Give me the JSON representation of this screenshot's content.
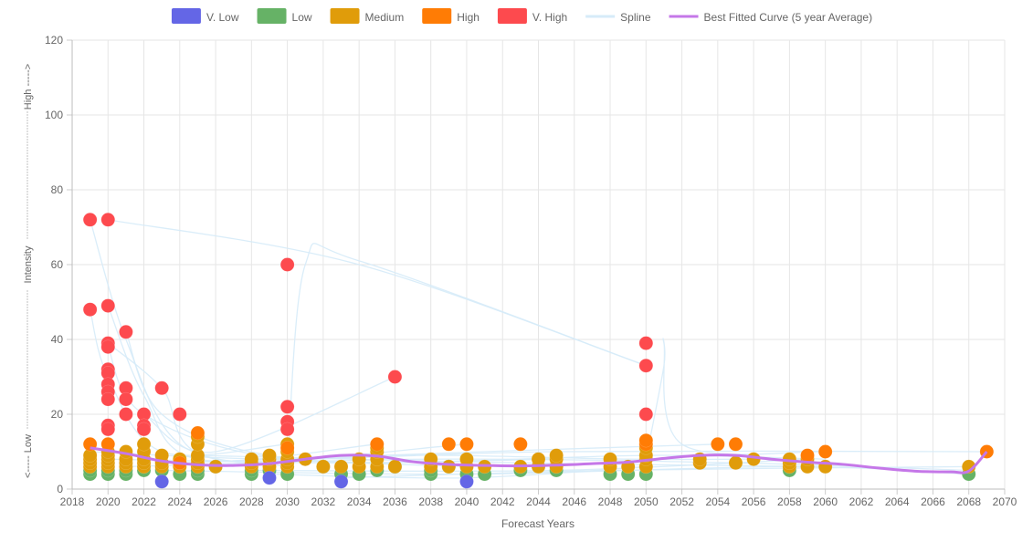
{
  "chart_data": {
    "type": "scatter",
    "title": "",
    "xlabel": "Forecast Years",
    "ylabel": "<----- Low -------------- Intensity --------------- High ----->",
    "ylabel_parts": {
      "low": "<----- Low",
      "mid": "Intensity",
      "high": "High ----->"
    },
    "xlim": [
      2018,
      2070
    ],
    "ylim": [
      0,
      120
    ],
    "x_ticks": [
      "2018",
      "2020",
      "2022",
      "2024",
      "2026",
      "2028",
      "2030",
      "2032",
      "2034",
      "2036",
      "2038",
      "2040",
      "2042",
      "2044",
      "2046",
      "2048",
      "2050",
      "2052",
      "2054",
      "2056",
      "2058",
      "2060",
      "2062",
      "2064",
      "2066",
      "2068",
      "2070"
    ],
    "y_ticks": [
      "0",
      "20",
      "40",
      "60",
      "80",
      "100",
      "120"
    ],
    "grid": true,
    "legend_position": "top-center",
    "legend": [
      {
        "label": "V. Low",
        "color": "#6466e6",
        "kind": "box"
      },
      {
        "label": "Low",
        "color": "#66b266",
        "kind": "box"
      },
      {
        "label": "Medium",
        "color": "#e09c0a",
        "kind": "box"
      },
      {
        "label": "High",
        "color": "#ff7c05",
        "kind": "box"
      },
      {
        "label": "V. High",
        "color": "#fd4a4e",
        "kind": "box"
      },
      {
        "label": "Spline",
        "color": "#d6ebf8",
        "kind": "line"
      },
      {
        "label": "Best Fitted Curve (5 year Average)",
        "color": "#c577e8",
        "kind": "line"
      }
    ],
    "series": [
      {
        "name": "V. Low",
        "color": "#6466e6",
        "points": [
          [
            2023,
            2
          ],
          [
            2029,
            3
          ],
          [
            2033,
            2
          ],
          [
            2040,
            2
          ]
        ]
      },
      {
        "name": "Low",
        "color": "#66b266",
        "points": [
          [
            2019,
            4
          ],
          [
            2019,
            5
          ],
          [
            2020,
            4
          ],
          [
            2020,
            5
          ],
          [
            2021,
            4
          ],
          [
            2021,
            5
          ],
          [
            2022,
            5
          ],
          [
            2023,
            5
          ],
          [
            2024,
            4
          ],
          [
            2025,
            4
          ],
          [
            2025,
            5
          ],
          [
            2026,
            6
          ],
          [
            2028,
            4
          ],
          [
            2028,
            5
          ],
          [
            2029,
            5
          ],
          [
            2030,
            4
          ],
          [
            2032,
            6
          ],
          [
            2033,
            4
          ],
          [
            2034,
            4
          ],
          [
            2035,
            5
          ],
          [
            2036,
            6
          ],
          [
            2038,
            4
          ],
          [
            2038,
            5
          ],
          [
            2039,
            6
          ],
          [
            2040,
            4
          ],
          [
            2041,
            4
          ],
          [
            2043,
            5
          ],
          [
            2045,
            5
          ],
          [
            2048,
            4
          ],
          [
            2049,
            4
          ],
          [
            2050,
            4
          ],
          [
            2058,
            5
          ],
          [
            2068,
            4
          ]
        ]
      },
      {
        "name": "Medium",
        "color": "#e09c0a",
        "points": [
          [
            2019,
            6
          ],
          [
            2019,
            7
          ],
          [
            2019,
            8
          ],
          [
            2019,
            9
          ],
          [
            2020,
            6
          ],
          [
            2020,
            7
          ],
          [
            2020,
            8
          ],
          [
            2020,
            9
          ],
          [
            2020,
            10
          ],
          [
            2021,
            6
          ],
          [
            2021,
            7
          ],
          [
            2021,
            8
          ],
          [
            2021,
            10
          ],
          [
            2022,
            6
          ],
          [
            2022,
            7
          ],
          [
            2022,
            8
          ],
          [
            2022,
            10
          ],
          [
            2022,
            12
          ],
          [
            2023,
            6
          ],
          [
            2023,
            7
          ],
          [
            2023,
            9
          ],
          [
            2024,
            6
          ],
          [
            2024,
            7
          ],
          [
            2024,
            8
          ],
          [
            2025,
            6
          ],
          [
            2025,
            7
          ],
          [
            2025,
            8
          ],
          [
            2025,
            9
          ],
          [
            2025,
            12
          ],
          [
            2025,
            14
          ],
          [
            2026,
            6
          ],
          [
            2028,
            6
          ],
          [
            2028,
            7
          ],
          [
            2028,
            8
          ],
          [
            2029,
            6
          ],
          [
            2029,
            8
          ],
          [
            2029,
            9
          ],
          [
            2030,
            6
          ],
          [
            2030,
            7
          ],
          [
            2030,
            8
          ],
          [
            2030,
            10
          ],
          [
            2030,
            12
          ],
          [
            2031,
            8
          ],
          [
            2032,
            6
          ],
          [
            2033,
            6
          ],
          [
            2034,
            6
          ],
          [
            2034,
            8
          ],
          [
            2035,
            6
          ],
          [
            2035,
            8
          ],
          [
            2035,
            10
          ],
          [
            2035,
            11
          ],
          [
            2036,
            6
          ],
          [
            2038,
            6
          ],
          [
            2038,
            8
          ],
          [
            2039,
            6
          ],
          [
            2040,
            6
          ],
          [
            2040,
            8
          ],
          [
            2041,
            6
          ],
          [
            2043,
            6
          ],
          [
            2044,
            6
          ],
          [
            2044,
            8
          ],
          [
            2045,
            6
          ],
          [
            2045,
            8
          ],
          [
            2045,
            9
          ],
          [
            2048,
            6
          ],
          [
            2048,
            8
          ],
          [
            2049,
            6
          ],
          [
            2050,
            6
          ],
          [
            2050,
            8
          ],
          [
            2050,
            9
          ],
          [
            2050,
            11
          ],
          [
            2053,
            7
          ],
          [
            2053,
            8
          ],
          [
            2055,
            7
          ],
          [
            2056,
            8
          ],
          [
            2058,
            6
          ],
          [
            2058,
            7
          ],
          [
            2058,
            8
          ],
          [
            2059,
            6
          ],
          [
            2059,
            8
          ],
          [
            2060,
            6
          ],
          [
            2068,
            6
          ]
        ]
      },
      {
        "name": "High",
        "color": "#ff7c05",
        "points": [
          [
            2019,
            12
          ],
          [
            2020,
            12
          ],
          [
            2024,
            7
          ],
          [
            2025,
            15
          ],
          [
            2030,
            11
          ],
          [
            2035,
            12
          ],
          [
            2039,
            12
          ],
          [
            2040,
            12
          ],
          [
            2043,
            12
          ],
          [
            2050,
            12
          ],
          [
            2050,
            13
          ],
          [
            2054,
            12
          ],
          [
            2055,
            12
          ],
          [
            2059,
            9
          ],
          [
            2060,
            10
          ],
          [
            2069,
            10
          ]
        ]
      },
      {
        "name": "V. High",
        "color": "#fd4a4e",
        "points": [
          [
            2019,
            72
          ],
          [
            2019,
            48
          ],
          [
            2020,
            72
          ],
          [
            2020,
            49
          ],
          [
            2020,
            39
          ],
          [
            2020,
            38
          ],
          [
            2020,
            32
          ],
          [
            2020,
            31
          ],
          [
            2020,
            28
          ],
          [
            2020,
            26
          ],
          [
            2020,
            24
          ],
          [
            2020,
            17
          ],
          [
            2020,
            16
          ],
          [
            2021,
            42
          ],
          [
            2021,
            27
          ],
          [
            2021,
            24
          ],
          [
            2021,
            20
          ],
          [
            2022,
            20
          ],
          [
            2022,
            17
          ],
          [
            2022,
            16
          ],
          [
            2023,
            27
          ],
          [
            2024,
            20
          ],
          [
            2030,
            60
          ],
          [
            2030,
            22
          ],
          [
            2030,
            18
          ],
          [
            2030,
            16
          ],
          [
            2036,
            30
          ],
          [
            2050,
            39
          ],
          [
            2050,
            33
          ],
          [
            2050,
            20
          ]
        ]
      }
    ],
    "best_fit_curve": {
      "name": "Best Fitted Curve (5 year Average)",
      "color": "#c577e8",
      "points": [
        [
          2019,
          11
        ],
        [
          2021,
          9.5
        ],
        [
          2023,
          7.5
        ],
        [
          2025,
          6.5
        ],
        [
          2027,
          6.3
        ],
        [
          2029,
          6.8
        ],
        [
          2031,
          8
        ],
        [
          2033,
          9
        ],
        [
          2035,
          8.8
        ],
        [
          2037,
          7.3
        ],
        [
          2039,
          6.6
        ],
        [
          2041,
          6.3
        ],
        [
          2043,
          6.2
        ],
        [
          2045,
          6.4
        ],
        [
          2047,
          6.8
        ],
        [
          2049,
          7.2
        ],
        [
          2051,
          8.2
        ],
        [
          2053,
          9
        ],
        [
          2055,
          9
        ],
        [
          2057,
          8
        ],
        [
          2059,
          7.2
        ],
        [
          2061,
          6.6
        ],
        [
          2063,
          5.6
        ],
        [
          2065,
          4.8
        ],
        [
          2067,
          4.6
        ],
        [
          2068,
          4.8
        ],
        [
          2069,
          10
        ]
      ]
    },
    "spline": {
      "name": "Spline",
      "color": "#d6ebf8",
      "lines": [
        [
          [
            2020,
            72
          ],
          [
            2034,
            60
          ],
          [
            2050,
            33
          ]
        ],
        [
          [
            2030,
            6
          ],
          [
            2031,
            60
          ],
          [
            2034,
            61
          ],
          [
            2050,
            33
          ]
        ],
        [
          [
            2019,
            72
          ],
          [
            2021,
            40
          ],
          [
            2024,
            12
          ],
          [
            2030,
            6
          ]
        ],
        [
          [
            2019,
            48
          ],
          [
            2020,
            30
          ],
          [
            2023,
            10
          ],
          [
            2030,
            12
          ]
        ],
        [
          [
            2020,
            49
          ],
          [
            2022,
            25
          ],
          [
            2025,
            8
          ],
          [
            2035,
            12
          ]
        ],
        [
          [
            2020,
            39
          ],
          [
            2023,
            27
          ],
          [
            2026,
            8
          ],
          [
            2040,
            12
          ]
        ],
        [
          [
            2020,
            38
          ],
          [
            2022,
            20
          ],
          [
            2030,
            8
          ],
          [
            2045,
            8
          ]
        ],
        [
          [
            2021,
            42
          ],
          [
            2023,
            20
          ],
          [
            2029,
            9
          ],
          [
            2040,
            6
          ]
        ],
        [
          [
            2022,
            20
          ],
          [
            2026,
            10
          ],
          [
            2036,
            30
          ]
        ],
        [
          [
            2050,
            8
          ],
          [
            2051,
            33
          ],
          [
            2051,
            39
          ],
          [
            2052,
            12
          ],
          [
            2060,
            10
          ]
        ],
        [
          [
            2019,
            10
          ],
          [
            2030,
            8
          ],
          [
            2045,
            10
          ],
          [
            2069,
            10
          ]
        ],
        [
          [
            2020,
            8
          ],
          [
            2035,
            7
          ],
          [
            2050,
            9
          ],
          [
            2060,
            8
          ]
        ],
        [
          [
            2021,
            6
          ],
          [
            2038,
            8
          ],
          [
            2055,
            7
          ],
          [
            2068,
            5
          ]
        ],
        [
          [
            2023,
            5
          ],
          [
            2040,
            4
          ],
          [
            2058,
            6
          ],
          [
            2068,
            4
          ]
        ],
        [
          [
            2025,
            9
          ],
          [
            2043,
            7
          ],
          [
            2060,
            6
          ]
        ],
        [
          [
            2028,
            5
          ],
          [
            2045,
            5
          ],
          [
            2059,
            8
          ]
        ],
        [
          [
            2024,
            7
          ],
          [
            2041,
            10
          ],
          [
            2054,
            12
          ]
        ],
        [
          [
            2033,
            3
          ],
          [
            2048,
            5
          ],
          [
            2068,
            6
          ]
        ],
        [
          [
            2029,
            4
          ],
          [
            2040,
            3
          ],
          [
            2050,
            6
          ]
        ],
        [
          [
            2026,
            6
          ],
          [
            2036,
            9
          ],
          [
            2049,
            8
          ],
          [
            2056,
            8
          ]
        ]
      ]
    }
  }
}
